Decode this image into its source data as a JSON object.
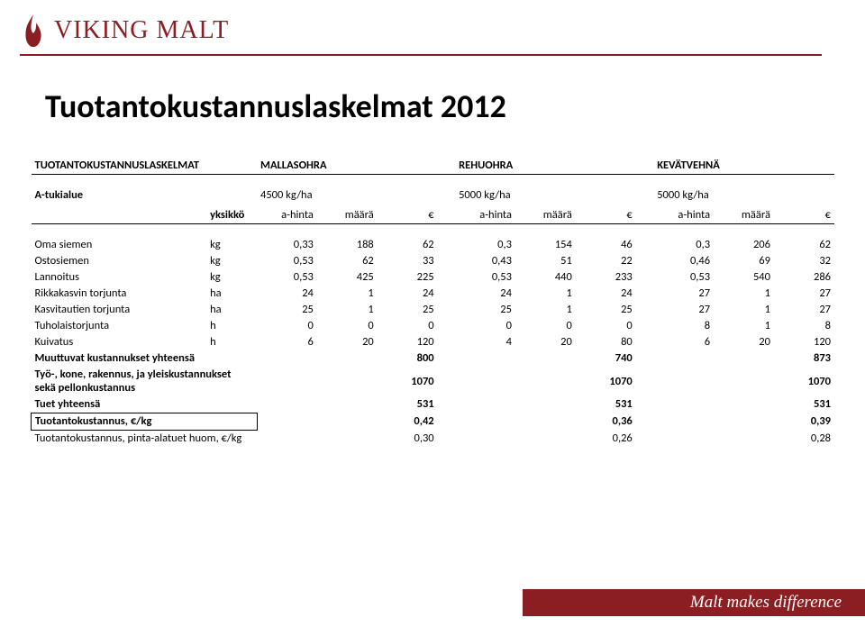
{
  "brand": {
    "name": "VIKING MALT",
    "flame_color": "#8a1e23",
    "slogan": "Malt makes difference"
  },
  "title": "Tuotantokustannuslaskelmat 2012",
  "header": {
    "table_label": "TUOTANTOKUSTANNUSLASKELMAT",
    "groups": [
      "MALLASOHRA",
      "REHUOHRA",
      "KEVÄTVEHNÄ"
    ],
    "region_label": "A-tukialue",
    "yields": [
      "4500 kg/ha",
      "5000 kg/ha",
      "5000 kg/ha"
    ],
    "unit_label": "yksikkö",
    "subcols": [
      "a-hinta",
      "määrä",
      "€"
    ]
  },
  "rows": [
    {
      "label": "Oma siemen",
      "unit": "kg",
      "v": [
        [
          "0,33",
          "188",
          "62"
        ],
        [
          "0,3",
          "154",
          "46"
        ],
        [
          "0,3",
          "206",
          "62"
        ]
      ]
    },
    {
      "label": "Ostosiemen",
      "unit": "kg",
      "v": [
        [
          "0,53",
          "62",
          "33"
        ],
        [
          "0,43",
          "51",
          "22"
        ],
        [
          "0,46",
          "69",
          "32"
        ]
      ]
    },
    {
      "label": "Lannoitus",
      "unit": "kg",
      "v": [
        [
          "0,53",
          "425",
          "225"
        ],
        [
          "0,53",
          "440",
          "233"
        ],
        [
          "0,53",
          "540",
          "286"
        ]
      ]
    },
    {
      "label": "Rikkakasvin torjunta",
      "unit": "ha",
      "v": [
        [
          "24",
          "1",
          "24"
        ],
        [
          "24",
          "1",
          "24"
        ],
        [
          "27",
          "1",
          "27"
        ]
      ]
    },
    {
      "label": "Kasvitautien torjunta",
      "unit": "ha",
      "v": [
        [
          "25",
          "1",
          "25"
        ],
        [
          "25",
          "1",
          "25"
        ],
        [
          "27",
          "1",
          "27"
        ]
      ]
    },
    {
      "label": "Tuholaistorjunta",
      "unit": "h",
      "v": [
        [
          "0",
          "0",
          "0"
        ],
        [
          "0",
          "0",
          "0"
        ],
        [
          "8",
          "1",
          "8"
        ]
      ]
    },
    {
      "label": "Kuivatus",
      "unit": "h",
      "v": [
        [
          "6",
          "20",
          "120"
        ],
        [
          "4",
          "20",
          "80"
        ],
        [
          "6",
          "20",
          "120"
        ]
      ]
    }
  ],
  "summary": [
    {
      "label": "Muuttuvat kustannukset yhteensä",
      "vals": [
        "800",
        "740",
        "873"
      ]
    },
    {
      "label": "Työ-, kone, rakennus, ja yleiskustannukset sekä pellonkustannus",
      "vals": [
        "1070",
        "1070",
        "1070"
      ]
    },
    {
      "label": "Tuet yhteensä",
      "vals": [
        "531",
        "531",
        "531"
      ]
    }
  ],
  "boxed": {
    "label": "Tuotantokustannus, €/kg",
    "vals": [
      "0,42",
      "0,36",
      "0,39"
    ]
  },
  "last": {
    "label": "Tuotantokustannus, pinta-alatuet huom, €/kg",
    "vals": [
      "0,30",
      "0,26",
      "0,28"
    ]
  }
}
